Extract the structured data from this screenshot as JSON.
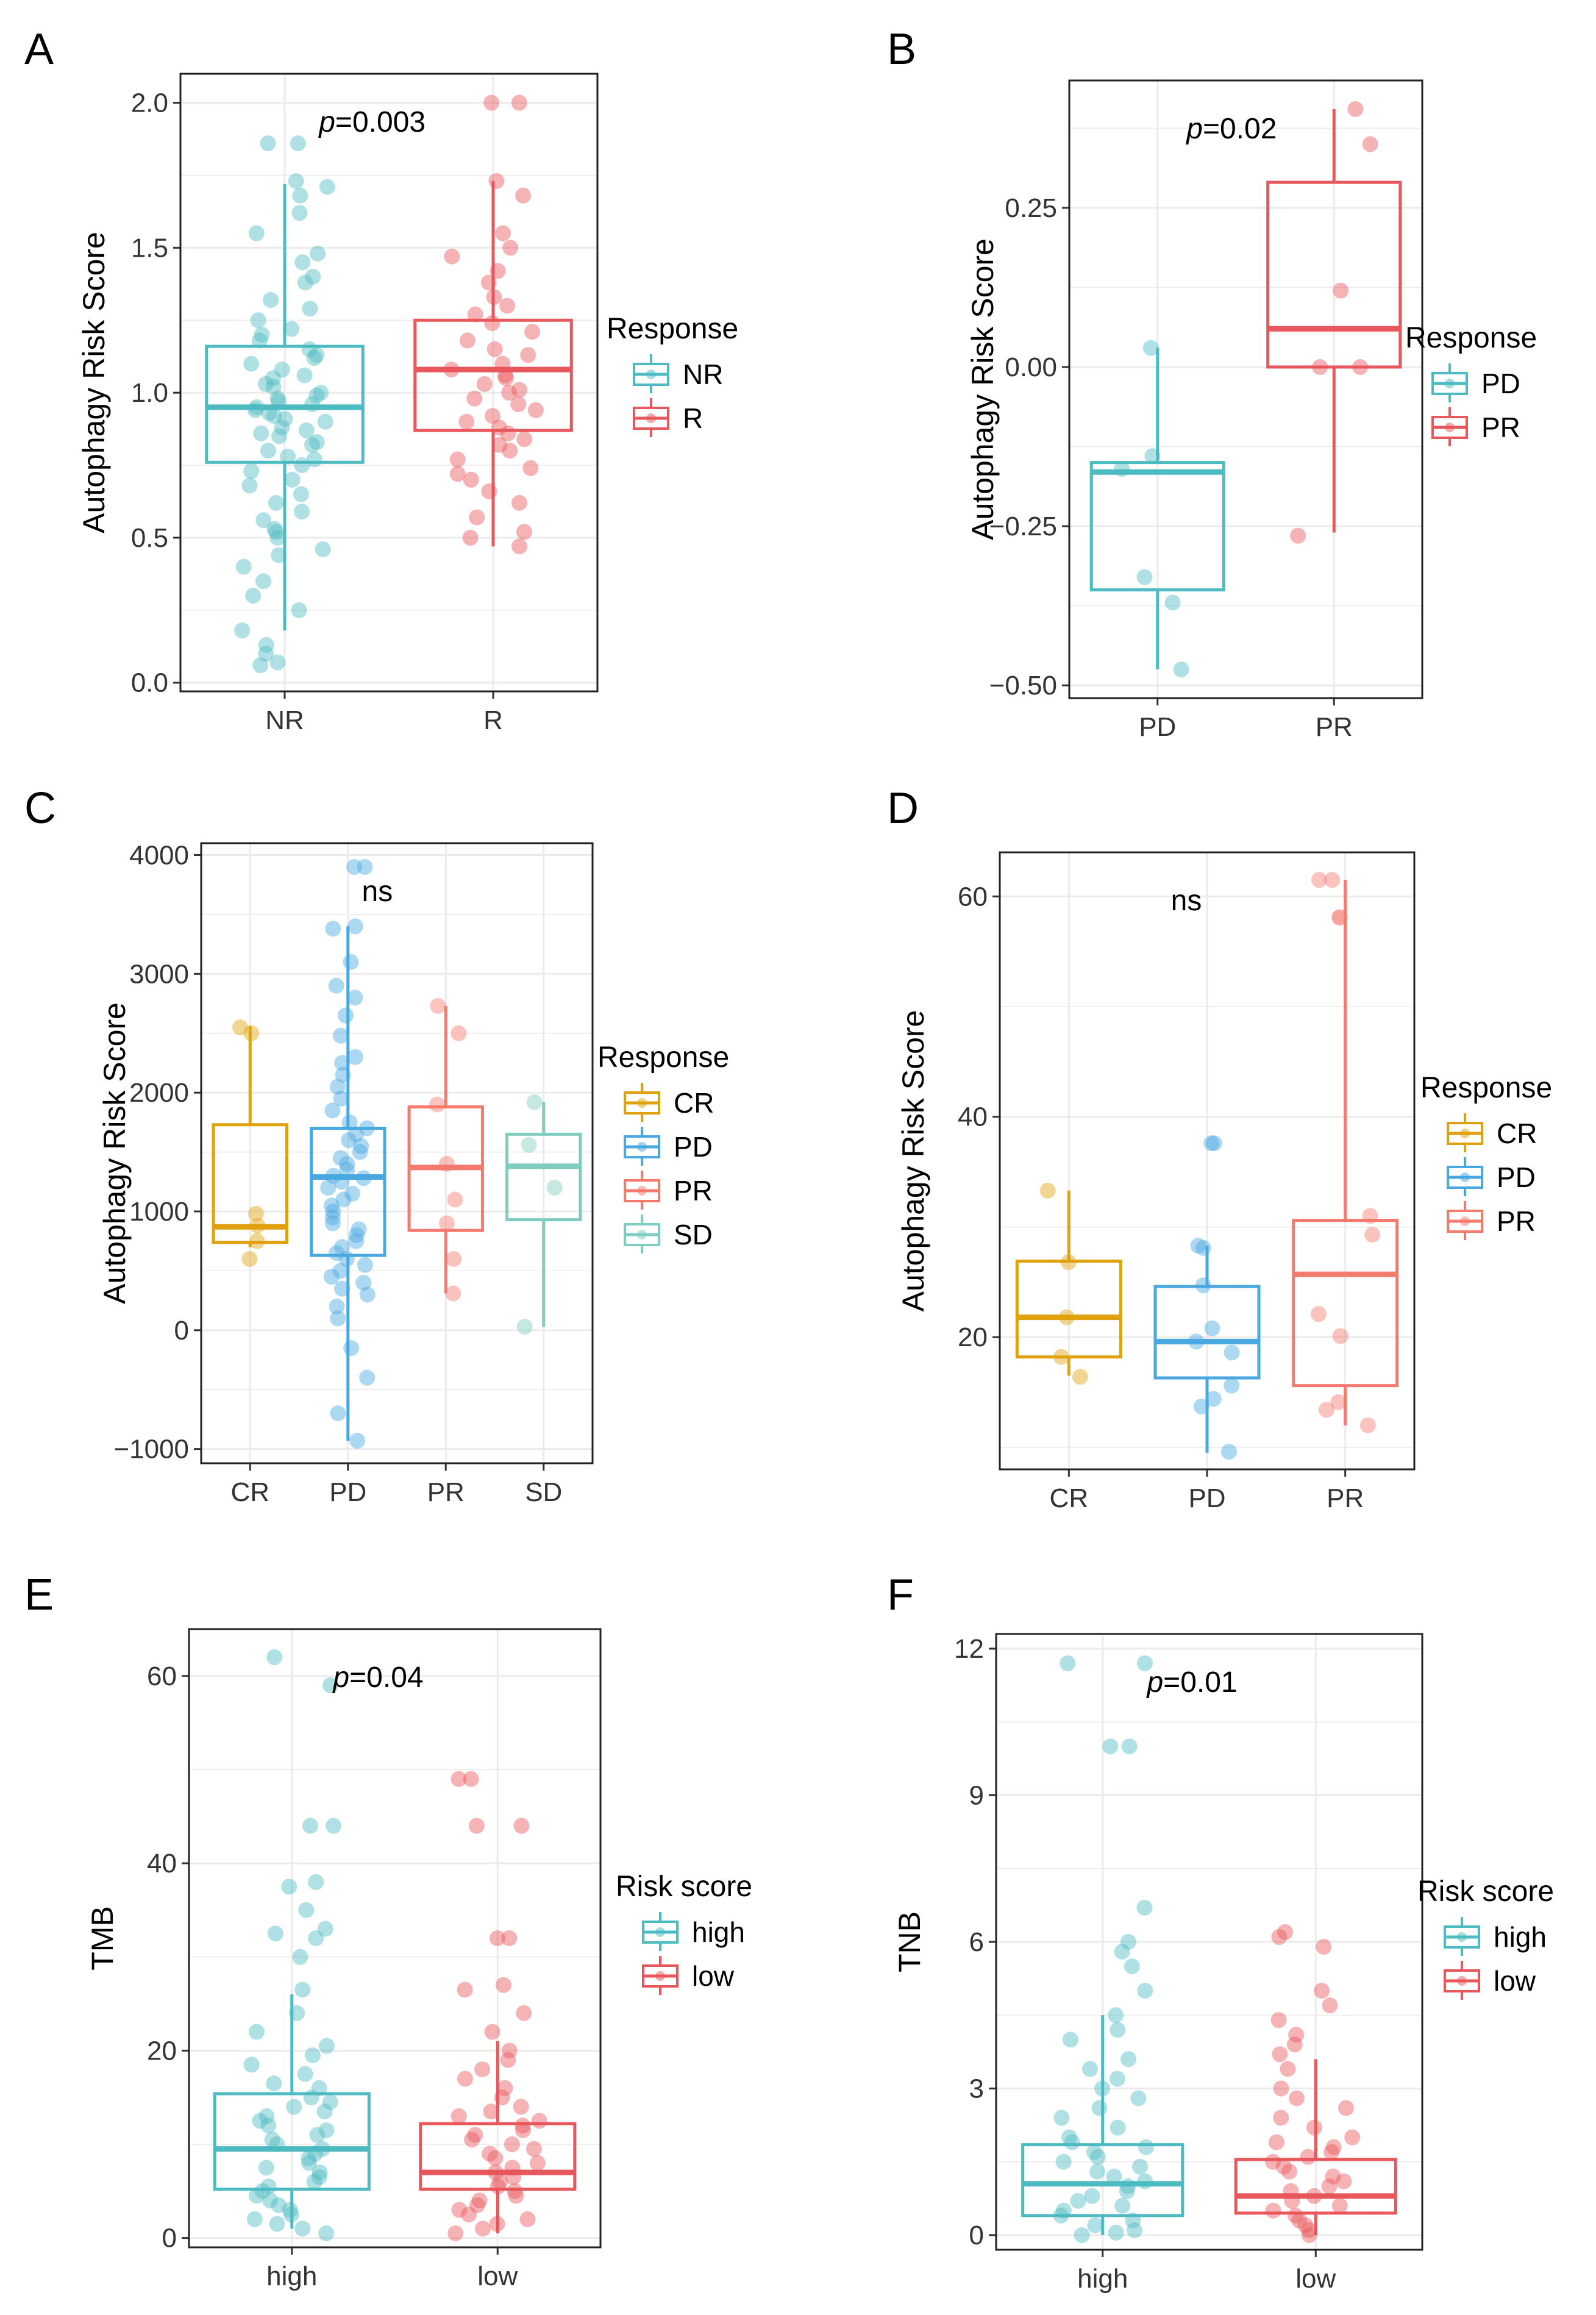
{
  "chart_data": [
    {
      "panel": "A",
      "type": "box",
      "ylabel": "Autophagy Risk Score",
      "xlabel": "",
      "ylim": [
        -0.03,
        2.1
      ],
      "yticks": [
        0.0,
        0.5,
        1.0,
        1.5,
        2.0
      ],
      "ytick_labels": [
        "0.0",
        "0.5",
        "1.0",
        "1.5",
        "2.0"
      ],
      "categories": [
        "NR",
        "R"
      ],
      "annotation": {
        "p_prefix": "p",
        "text": "=0.003"
      },
      "legend_title": "Response",
      "legend_labels": [
        "NR",
        "R"
      ],
      "colors": [
        "#4dbbc2",
        "#e8575c"
      ],
      "boxes": [
        {
          "min": 0.18,
          "q1": 0.76,
          "median": 0.95,
          "q3": 1.16,
          "max": 1.72
        },
        {
          "min": 0.47,
          "q1": 0.87,
          "median": 1.08,
          "q3": 1.25,
          "max": 1.73
        }
      ],
      "points": [
        [
          1.86,
          1.86,
          1.73,
          1.71,
          1.68,
          1.62,
          1.55,
          1.48,
          1.45,
          1.4,
          1.38,
          1.32,
          1.29,
          1.25,
          1.22,
          1.2,
          1.18,
          1.15,
          1.13,
          1.12,
          1.1,
          1.08,
          1.06,
          1.05,
          1.03,
          1.02,
          1.0,
          0.99,
          0.98,
          0.97,
          0.96,
          0.95,
          0.94,
          0.93,
          0.92,
          0.91,
          0.9,
          0.88,
          0.87,
          0.86,
          0.85,
          0.83,
          0.82,
          0.8,
          0.78,
          0.77,
          0.75,
          0.73,
          0.7,
          0.68,
          0.65,
          0.62,
          0.59,
          0.56,
          0.53,
          0.52,
          0.5,
          0.46,
          0.44,
          0.4,
          0.35,
          0.3,
          0.25,
          0.18,
          0.13,
          0.1,
          0.07,
          0.06
        ],
        [
          2.0,
          2.0,
          1.73,
          1.68,
          1.55,
          1.5,
          1.47,
          1.42,
          1.38,
          1.33,
          1.3,
          1.27,
          1.24,
          1.21,
          1.18,
          1.15,
          1.13,
          1.1,
          1.08,
          1.06,
          1.05,
          1.03,
          1.01,
          1.0,
          0.98,
          0.96,
          0.94,
          0.92,
          0.9,
          0.88,
          0.86,
          0.84,
          0.82,
          0.8,
          0.77,
          0.74,
          0.72,
          0.7,
          0.66,
          0.62,
          0.57,
          0.52,
          0.5,
          0.47
        ]
      ]
    },
    {
      "panel": "B",
      "type": "box",
      "ylabel": "Autophagy Risk Score",
      "xlabel": "",
      "ylim": [
        -0.52,
        0.45
      ],
      "yticks": [
        -0.5,
        -0.25,
        0.0,
        0.25
      ],
      "ytick_labels": [
        "−0.50",
        "−0.25",
        "0.00",
        "0.25"
      ],
      "categories": [
        "PD",
        "PR"
      ],
      "annotation": {
        "p_prefix": "p",
        "text": "=0.02"
      },
      "legend_title": "Response",
      "legend_labels": [
        "PD",
        "PR"
      ],
      "colors": [
        "#4dbbc2",
        "#e8575c"
      ],
      "boxes": [
        {
          "min": -0.475,
          "q1": -0.35,
          "median": -0.165,
          "q3": -0.15,
          "max": 0.03
        },
        {
          "min": -0.26,
          "q1": 0.0,
          "median": 0.06,
          "q3": 0.29,
          "max": 0.405
        }
      ],
      "points": [
        [
          0.03,
          -0.14,
          -0.16,
          -0.33,
          -0.37,
          -0.475
        ],
        [
          0.405,
          0.35,
          0.12,
          0.0,
          0.0,
          -0.265
        ]
      ]
    },
    {
      "panel": "C",
      "type": "box",
      "ylabel": "Autophagy Risk Score",
      "xlabel": "",
      "ylim": [
        -1120,
        4100
      ],
      "yticks": [
        -1000,
        0,
        1000,
        2000,
        3000,
        4000
      ],
      "ytick_labels": [
        "−1000",
        "0",
        "1000",
        "2000",
        "3000",
        "4000"
      ],
      "categories": [
        "CR",
        "PD",
        "PR",
        "SD"
      ],
      "annotation": {
        "p_prefix": "",
        "text": "ns"
      },
      "legend_title": "Response",
      "legend_labels": [
        "CR",
        "PD",
        "PR",
        "SD"
      ],
      "colors": [
        "#e0a10f",
        "#4aa8e0",
        "#f47a6e",
        "#7ecdc0"
      ],
      "boxes": [
        {
          "min": 700,
          "q1": 740,
          "median": 870,
          "q3": 1730,
          "max": 2560
        },
        {
          "min": -930,
          "q1": 630,
          "median": 1290,
          "q3": 1700,
          "max": 3400
        },
        {
          "min": 310,
          "q1": 840,
          "median": 1370,
          "q3": 1880,
          "max": 2730
        },
        {
          "min": 30,
          "q1": 930,
          "median": 1380,
          "q3": 1650,
          "max": 1920
        }
      ],
      "points": [
        [
          2550,
          2500,
          980,
          880,
          750,
          600
        ],
        [
          3900,
          3900,
          3400,
          3380,
          3100,
          2900,
          2800,
          2650,
          2480,
          2300,
          2250,
          2150,
          2050,
          1950,
          1850,
          1750,
          1700,
          1650,
          1600,
          1550,
          1500,
          1450,
          1400,
          1350,
          1300,
          1280,
          1250,
          1200,
          1150,
          1100,
          1050,
          1000,
          950,
          900,
          850,
          800,
          750,
          700,
          650,
          600,
          550,
          500,
          450,
          400,
          350,
          300,
          200,
          100,
          -150,
          -400,
          -700,
          -930
        ],
        [
          2730,
          2500,
          1900,
          1400,
          1100,
          900,
          600,
          310
        ],
        [
          1920,
          1560,
          1200,
          30
        ]
      ]
    },
    {
      "panel": "D",
      "type": "box",
      "ylabel": "Autophagy Risk Score",
      "xlabel": "",
      "ylim": [
        8,
        64
      ],
      "yticks": [
        20,
        40,
        60
      ],
      "ytick_labels": [
        "20",
        "40",
        "60"
      ],
      "categories": [
        "CR",
        "PD",
        "PR"
      ],
      "annotation": {
        "p_prefix": "",
        "text": "ns"
      },
      "legend_title": "Response",
      "legend_labels": [
        "CR",
        "PD",
        "PR"
      ],
      "colors": [
        "#e0a10f",
        "#4aa8e0",
        "#f47a6e"
      ],
      "boxes": [
        {
          "min": 16.5,
          "q1": 18.2,
          "median": 21.8,
          "q3": 26.9,
          "max": 33.3
        },
        {
          "min": 9.5,
          "q1": 16.3,
          "median": 19.6,
          "q3": 24.6,
          "max": 28.3
        },
        {
          "min": 12.0,
          "q1": 15.6,
          "median": 25.7,
          "q3": 30.6,
          "max": 61.5
        }
      ],
      "points": [
        [
          33.3,
          26.8,
          21.8,
          18.2,
          16.4
        ],
        [
          37.6,
          37.6,
          28.3,
          28.1,
          24.7,
          20.8,
          19.6,
          18.6,
          15.6,
          14.4,
          13.7,
          9.6
        ],
        [
          61.5,
          61.5,
          58.1,
          58.1,
          31.0,
          29.3,
          22.1,
          20.1,
          14.1,
          13.4,
          12.0
        ]
      ]
    },
    {
      "panel": "E",
      "type": "box",
      "ylabel": "TMB",
      "xlabel": "",
      "ylim": [
        -1,
        65
      ],
      "yticks": [
        0,
        20,
        40,
        60
      ],
      "ytick_labels": [
        "0",
        "20",
        "40",
        "60"
      ],
      "categories": [
        "high",
        "low"
      ],
      "annotation": {
        "p_prefix": "p",
        "text": "=0.04"
      },
      "legend_title": "Risk score",
      "legend_labels": [
        "high",
        "low"
      ],
      "colors": [
        "#4dbbc2",
        "#e8575c"
      ],
      "boxes": [
        {
          "min": 1.0,
          "q1": 5.2,
          "median": 9.5,
          "q3": 15.4,
          "max": 26.0
        },
        {
          "min": 0.5,
          "q1": 5.2,
          "median": 7.0,
          "q3": 12.2,
          "max": 21.0
        }
      ],
      "points": [
        [
          62.0,
          59.0,
          44.0,
          44.0,
          38.0,
          37.5,
          35.0,
          33.0,
          32.5,
          32.0,
          30.0,
          26.5,
          24.0,
          22.0,
          20.5,
          19.5,
          18.5,
          17.5,
          16.5,
          16.0,
          15.0,
          14.5,
          14.0,
          13.5,
          13.0,
          12.5,
          12.0,
          11.5,
          11.0,
          10.5,
          10.0,
          9.5,
          9.0,
          8.5,
          8.0,
          7.5,
          7.0,
          6.5,
          6.0,
          5.5,
          5.0,
          4.5,
          4.0,
          3.5,
          3.0,
          2.5,
          2.0,
          1.5,
          1.0,
          0.5
        ],
        [
          49.0,
          49.0,
          44.0,
          44.0,
          32.0,
          32.0,
          27.0,
          26.5,
          24.0,
          22.0,
          20.0,
          19.0,
          18.0,
          17.0,
          16.0,
          15.0,
          14.0,
          13.5,
          13.0,
          12.5,
          12.0,
          11.5,
          11.0,
          10.5,
          10.0,
          9.5,
          9.0,
          8.5,
          8.0,
          7.5,
          7.0,
          6.5,
          6.0,
          5.5,
          5.0,
          4.5,
          4.0,
          3.5,
          3.0,
          2.5,
          2.0,
          1.5,
          1.0,
          0.5
        ]
      ]
    },
    {
      "panel": "F",
      "type": "box",
      "ylabel": "TNB",
      "xlabel": "",
      "ylim": [
        -0.3,
        12.3
      ],
      "yticks": [
        0,
        3,
        6,
        9,
        12
      ],
      "ytick_labels": [
        "0",
        "3",
        "6",
        "9",
        "12"
      ],
      "categories": [
        "high",
        "low"
      ],
      "annotation": {
        "p_prefix": "p",
        "text": "=0.01"
      },
      "legend_title": "Risk score",
      "legend_labels": [
        "high",
        "low"
      ],
      "colors": [
        "#4dbbc2",
        "#e8575c"
      ],
      "boxes": [
        {
          "min": 0.0,
          "q1": 0.4,
          "median": 1.05,
          "q3": 1.85,
          "max": 4.5
        },
        {
          "min": 0.0,
          "q1": 0.45,
          "median": 0.8,
          "q3": 1.55,
          "max": 3.6
        }
      ],
      "points": [
        [
          11.7,
          11.7,
          10.0,
          10.0,
          6.7,
          6.0,
          5.8,
          5.5,
          5.0,
          4.5,
          4.2,
          4.0,
          3.6,
          3.4,
          3.2,
          3.0,
          2.8,
          2.6,
          2.4,
          2.2,
          2.0,
          1.9,
          1.8,
          1.7,
          1.6,
          1.5,
          1.4,
          1.3,
          1.2,
          1.1,
          1.0,
          0.9,
          0.8,
          0.7,
          0.6,
          0.5,
          0.4,
          0.3,
          0.2,
          0.1,
          0.05,
          0.0
        ],
        [
          6.2,
          6.1,
          5.9,
          5.0,
          4.7,
          4.4,
          4.1,
          3.9,
          3.7,
          3.4,
          3.0,
          2.8,
          2.6,
          2.4,
          2.2,
          2.0,
          1.9,
          1.8,
          1.7,
          1.6,
          1.5,
          1.4,
          1.3,
          1.2,
          1.1,
          1.0,
          0.9,
          0.8,
          0.7,
          0.6,
          0.5,
          0.4,
          0.3,
          0.2,
          0.1,
          0.0
        ]
      ]
    }
  ]
}
